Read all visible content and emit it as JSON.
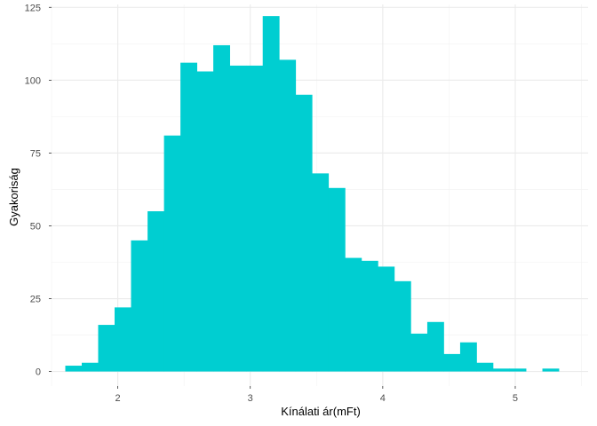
{
  "chart_data": {
    "type": "bar",
    "subtype": "histogram",
    "xlabel": "Kínálati ár(mFt)",
    "ylabel": "Gyakoriság",
    "xlim": [
      1.5,
      5.55
    ],
    "ylim": [
      -5,
      126
    ],
    "x_ticks": [
      2,
      3,
      4,
      5
    ],
    "y_ticks": [
      0,
      25,
      50,
      75,
      100,
      125
    ],
    "grid": true,
    "bar_color": "#00CED1",
    "bins": [
      {
        "x0": 1.604,
        "x1": 1.728,
        "count": 2
      },
      {
        "x0": 1.728,
        "x1": 1.852,
        "count": 3
      },
      {
        "x0": 1.852,
        "x1": 1.976,
        "count": 16
      },
      {
        "x0": 1.976,
        "x1": 2.1,
        "count": 22
      },
      {
        "x0": 2.1,
        "x1": 2.225,
        "count": 45
      },
      {
        "x0": 2.225,
        "x1": 2.349,
        "count": 55
      },
      {
        "x0": 2.349,
        "x1": 2.473,
        "count": 81
      },
      {
        "x0": 2.473,
        "x1": 2.597,
        "count": 106
      },
      {
        "x0": 2.597,
        "x1": 2.721,
        "count": 103
      },
      {
        "x0": 2.721,
        "x1": 2.845,
        "count": 112
      },
      {
        "x0": 2.845,
        "x1": 2.97,
        "count": 105
      },
      {
        "x0": 2.97,
        "x1": 3.094,
        "count": 105
      },
      {
        "x0": 3.094,
        "x1": 3.218,
        "count": 122
      },
      {
        "x0": 3.218,
        "x1": 3.342,
        "count": 107
      },
      {
        "x0": 3.342,
        "x1": 3.466,
        "count": 95
      },
      {
        "x0": 3.466,
        "x1": 3.59,
        "count": 68
      },
      {
        "x0": 3.59,
        "x1": 3.715,
        "count": 63
      },
      {
        "x0": 3.715,
        "x1": 3.839,
        "count": 39
      },
      {
        "x0": 3.839,
        "x1": 3.963,
        "count": 38
      },
      {
        "x0": 3.963,
        "x1": 4.087,
        "count": 36
      },
      {
        "x0": 4.087,
        "x1": 4.211,
        "count": 31
      },
      {
        "x0": 4.211,
        "x1": 4.336,
        "count": 13
      },
      {
        "x0": 4.336,
        "x1": 4.46,
        "count": 17
      },
      {
        "x0": 4.46,
        "x1": 4.584,
        "count": 6
      },
      {
        "x0": 4.584,
        "x1": 4.708,
        "count": 10
      },
      {
        "x0": 4.708,
        "x1": 4.832,
        "count": 3
      },
      {
        "x0": 4.832,
        "x1": 4.956,
        "count": 1
      },
      {
        "x0": 4.956,
        "x1": 5.081,
        "count": 1
      },
      {
        "x0": 5.081,
        "x1": 5.205,
        "count": 0
      },
      {
        "x0": 5.205,
        "x1": 5.329,
        "count": 1
      }
    ]
  }
}
